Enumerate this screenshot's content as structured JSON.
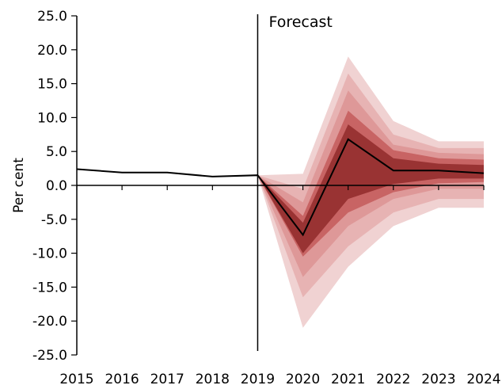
{
  "chart_data": {
    "type": "area",
    "title": "",
    "xlabel": "",
    "ylabel": "Per cent",
    "ylim": [
      -25,
      25
    ],
    "y_ticks": [
      "25.0",
      "20.0",
      "15.0",
      "10.0",
      "5.0",
      "0.0",
      "-5.0",
      "-10.0",
      "-15.0",
      "-20.0",
      "-25.0"
    ],
    "y_tick_values": [
      25,
      20,
      15,
      10,
      5,
      0,
      -5,
      -10,
      -15,
      -20,
      -25
    ],
    "categories": [
      "2015",
      "2016",
      "2017",
      "2018",
      "2019",
      "2020",
      "2021",
      "2022",
      "2023",
      "2024"
    ],
    "annotation": "Forecast",
    "forecast_start": "2019",
    "central": {
      "x": [
        "2015",
        "2016",
        "2017",
        "2018",
        "2019",
        "2020",
        "2021",
        "2022",
        "2023",
        "2024"
      ],
      "values": [
        2.4,
        1.9,
        1.9,
        1.3,
        1.5,
        -7.3,
        6.8,
        2.2,
        2.2,
        1.8
      ]
    },
    "fan_x": [
      "2019",
      "2020",
      "2021",
      "2022",
      "2023",
      "2024"
    ],
    "fan_bands": [
      {
        "upper": [
          1.5,
          1.7,
          19.0,
          9.5,
          6.5,
          6.5
        ],
        "lower": [
          1.5,
          -21.0,
          -12.0,
          -6.0,
          -3.3,
          -3.3
        ]
      },
      {
        "upper": [
          1.5,
          -0.5,
          16.5,
          7.5,
          5.5,
          5.5
        ],
        "lower": [
          1.5,
          -16.5,
          -9.0,
          -4.0,
          -2.0,
          -2.0
        ]
      },
      {
        "upper": [
          1.5,
          -2.5,
          14.0,
          6.0,
          4.8,
          4.6
        ],
        "lower": [
          1.5,
          -13.5,
          -6.0,
          -2.0,
          -0.5,
          -0.5
        ]
      },
      {
        "upper": [
          1.5,
          -4.5,
          11.0,
          5.2,
          4.0,
          3.8
        ],
        "lower": [
          1.5,
          -10.5,
          -4.0,
          -1.0,
          0.3,
          0.5
        ]
      },
      {
        "upper": [
          1.5,
          -5.5,
          9.0,
          4.0,
          3.2,
          3.0
        ],
        "lower": [
          1.5,
          -10.0,
          -2.0,
          0.2,
          1.0,
          1.0
        ]
      }
    ],
    "band_colors": [
      "#f0d2d2",
      "#e7b3b3",
      "#de9898",
      "#c86464",
      "#993333"
    ],
    "line_color": "#000000",
    "grid": false
  }
}
